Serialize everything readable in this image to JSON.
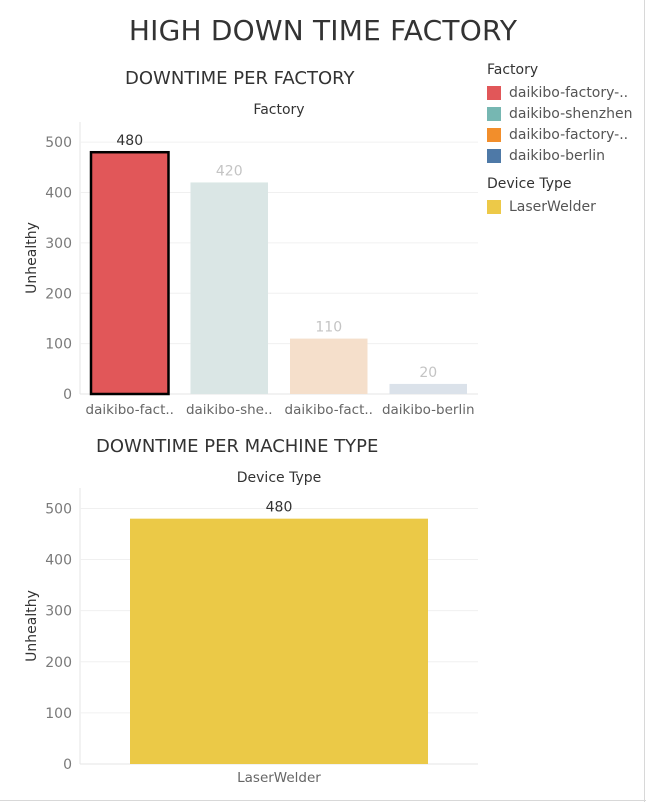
{
  "dashboard_title": "HIGH DOWN TIME FACTORY",
  "legends": [
    {
      "title": "Factory",
      "items": [
        {
          "label": "daikibo-factory-..",
          "color": "#e15759"
        },
        {
          "label": "daikibo-shenzhen",
          "color": "#76b7b2"
        },
        {
          "label": "daikibo-factory-..",
          "color": "#f28e2b"
        },
        {
          "label": "daikibo-berlin",
          "color": "#4e79a7"
        }
      ]
    },
    {
      "title": "Device Type",
      "items": [
        {
          "label": "LaserWelder",
          "color": "#edc948"
        }
      ]
    }
  ],
  "chart_data": [
    {
      "type": "bar",
      "title": "DOWNTIME PER FACTORY",
      "header": "Factory",
      "ylabel": "Unhealthy",
      "ylim": [
        0,
        540
      ],
      "yticks": [
        0,
        100,
        200,
        300,
        400,
        500
      ],
      "grid": true,
      "categories": [
        "daikibo-fact..",
        "daikibo-she..",
        "daikibo-fact..",
        "daikibo-berlin"
      ],
      "values": [
        480,
        420,
        110,
        20
      ],
      "colors": [
        "#e15759",
        "#dae6e5",
        "#f5dfcb",
        "#dbe2ea"
      ],
      "label_colors": [
        "#333333",
        "#c4c4c4",
        "#c4c4c4",
        "#c4c4c4"
      ],
      "highlighted": [
        true,
        false,
        false,
        false
      ]
    },
    {
      "type": "bar",
      "title": "DOWNTIME PER MACHINE TYPE",
      "header": "Device Type",
      "ylabel": "Unhealthy",
      "ylim": [
        0,
        540
      ],
      "yticks": [
        0,
        100,
        200,
        300,
        400,
        500
      ],
      "grid": true,
      "categories": [
        "LaserWelder"
      ],
      "values": [
        480
      ],
      "colors": [
        "#ebc947"
      ],
      "label_colors": [
        "#333333"
      ],
      "highlighted": [
        false
      ]
    }
  ]
}
